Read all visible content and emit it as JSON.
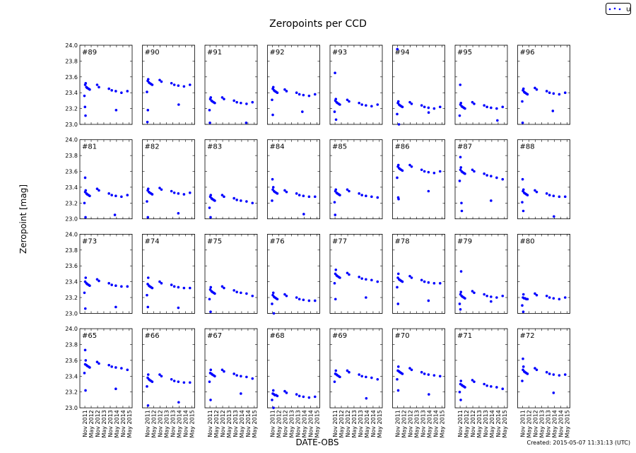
{
  "chart_data": {
    "type": "scatter",
    "title": "Zeropoints per CCD",
    "xlabel": "DATE-OBS",
    "ylabel": "Zeropoint [mag]",
    "ylim": [
      23.0,
      24.0
    ],
    "xlim": [
      "2011-06-10",
      "2015-07-25"
    ],
    "y_ticks": [
      23.0,
      23.2,
      23.4,
      23.6,
      23.8,
      24.0
    ],
    "y_tick_labels": [
      "23.0",
      "23.2",
      "23.4",
      "23.6",
      "23.8",
      "24.0"
    ],
    "x_ticks": [
      "2011-11-01",
      "2012-05-01",
      "2012-11-01",
      "2013-05-01",
      "2013-11-01",
      "2014-05-01",
      "2014-11-01",
      "2015-05-01"
    ],
    "x_tick_labels": [
      "Nov 2011",
      "May 2012",
      "Nov 2012",
      "May 2013",
      "Nov 2013",
      "May 2014",
      "Nov 2014",
      "May 2015"
    ],
    "legend": {
      "entries": [
        "u"
      ],
      "placement": "top-right"
    },
    "series_color": "#0000ff",
    "grid": false,
    "x": [
      "2011-10-20",
      "2011-11-10",
      "2011-11-25",
      "2011-12-15",
      "2012-01-10",
      "2012-02-15",
      "2012-03-20",
      "2012-10-20",
      "2012-12-10",
      "2013-09-25",
      "2013-12-15",
      "2014-04-10",
      "2014-09-20",
      "2015-03-10"
    ],
    "panels": [
      {
        "label": "#89",
        "y": [
          23.36,
          23.5,
          23.52,
          23.47,
          23.46,
          23.45,
          23.44,
          23.5,
          23.47,
          23.45,
          23.43,
          23.42,
          23.4,
          23.42
        ],
        "outliers": [
          [
            "2011-11-20",
            23.11
          ],
          [
            "2011-11-05",
            23.22
          ],
          [
            "2014-04-20",
            23.18
          ]
        ]
      },
      {
        "label": "#90",
        "y": [
          23.41,
          23.55,
          23.57,
          23.53,
          23.52,
          23.51,
          23.5,
          23.56,
          23.54,
          23.52,
          23.5,
          23.49,
          23.48,
          23.5
        ],
        "outliers": [
          [
            "2011-11-15",
            23.18
          ],
          [
            "2011-11-01",
            23.03
          ],
          [
            "2014-04-20",
            23.25
          ]
        ]
      },
      {
        "label": "#91",
        "y": [
          23.18,
          23.32,
          23.34,
          23.3,
          23.29,
          23.28,
          23.27,
          23.34,
          23.32,
          23.3,
          23.28,
          23.27,
          23.26,
          23.28
        ],
        "outliers": [
          [
            "2011-11-01",
            23.02
          ],
          [
            "2014-09-10",
            23.02
          ]
        ]
      },
      {
        "label": "#92",
        "y": [
          23.31,
          23.45,
          23.47,
          23.43,
          23.42,
          23.41,
          23.4,
          23.44,
          23.42,
          23.4,
          23.38,
          23.37,
          23.36,
          23.38
        ],
        "outliers": [
          [
            "2011-11-10",
            23.12
          ],
          [
            "2014-03-10",
            23.16
          ]
        ]
      },
      {
        "label": "#93",
        "y": [
          23.16,
          23.3,
          23.32,
          23.28,
          23.27,
          23.26,
          23.25,
          23.31,
          23.29,
          23.27,
          23.25,
          23.24,
          23.23,
          23.25
        ],
        "outliers": [
          [
            "2011-11-01",
            23.65
          ],
          [
            "2011-12-01",
            23.06
          ]
        ]
      },
      {
        "label": "#94",
        "y": [
          23.13,
          23.27,
          23.29,
          23.25,
          23.24,
          23.23,
          23.22,
          23.28,
          23.26,
          23.24,
          23.22,
          23.21,
          23.2,
          23.22
        ],
        "outliers": [
          [
            "2011-10-25",
            23.95
          ],
          [
            "2011-12-10",
            23.0
          ],
          [
            "2014-04-15",
            23.15
          ]
        ]
      },
      {
        "label": "#95",
        "y": [
          23.11,
          23.25,
          23.27,
          23.23,
          23.22,
          23.21,
          23.2,
          23.28,
          23.26,
          23.24,
          23.22,
          23.21,
          23.2,
          23.22
        ],
        "outliers": [
          [
            "2011-11-05",
            23.5
          ],
          [
            "2014-10-10",
            23.05
          ]
        ]
      },
      {
        "label": "#96",
        "y": [
          23.29,
          23.43,
          23.45,
          23.41,
          23.4,
          23.39,
          23.38,
          23.46,
          23.44,
          23.42,
          23.4,
          23.39,
          23.38,
          23.4
        ],
        "outliers": [
          [
            "2011-11-01",
            23.02
          ],
          [
            "2014-03-20",
            23.17
          ]
        ]
      },
      {
        "label": "#81",
        "y": [
          23.2,
          23.34,
          23.36,
          23.32,
          23.31,
          23.3,
          23.29,
          23.38,
          23.36,
          23.32,
          23.3,
          23.29,
          23.28,
          23.3
        ],
        "outliers": [
          [
            "2011-11-10",
            23.52
          ],
          [
            "2011-11-20",
            23.02
          ],
          [
            "2014-03-15",
            23.05
          ]
        ]
      },
      {
        "label": "#82",
        "y": [
          23.22,
          23.36,
          23.38,
          23.34,
          23.33,
          23.32,
          23.31,
          23.39,
          23.37,
          23.35,
          23.33,
          23.32,
          23.31,
          23.33
        ],
        "outliers": [
          [
            "2011-11-15",
            23.02
          ],
          [
            "2014-04-10",
            23.07
          ]
        ]
      },
      {
        "label": "#83",
        "y": [
          23.14,
          23.28,
          23.3,
          23.26,
          23.25,
          23.24,
          23.23,
          23.3,
          23.28,
          23.26,
          23.24,
          23.23,
          23.22,
          23.2
        ],
        "outliers": [
          [
            "2011-11-20",
            23.02
          ]
        ]
      },
      {
        "label": "#84",
        "y": [
          23.23,
          23.37,
          23.4,
          23.35,
          23.34,
          23.33,
          23.32,
          23.36,
          23.34,
          23.32,
          23.3,
          23.29,
          23.28,
          23.28
        ],
        "outliers": [
          [
            "2011-11-01",
            23.5
          ],
          [
            "2014-04-20",
            23.06
          ]
        ]
      },
      {
        "label": "#85",
        "y": [
          23.21,
          23.35,
          23.37,
          23.33,
          23.32,
          23.31,
          23.3,
          23.37,
          23.35,
          23.32,
          23.3,
          23.29,
          23.28,
          23.27
        ],
        "outliers": [
          [
            "2011-11-05",
            23.05
          ]
        ]
      },
      {
        "label": "#86",
        "y": [
          23.52,
          23.66,
          23.68,
          23.64,
          23.63,
          23.62,
          23.61,
          23.68,
          23.66,
          23.62,
          23.6,
          23.59,
          23.58,
          23.6
        ],
        "outliers": [
          [
            "2011-11-20",
            23.27
          ],
          [
            "2011-12-01",
            23.25
          ],
          [
            "2014-04-10",
            23.35
          ]
        ]
      },
      {
        "label": "#87",
        "y": [
          23.48,
          23.62,
          23.65,
          23.6,
          23.59,
          23.58,
          23.57,
          23.62,
          23.6,
          23.57,
          23.55,
          23.54,
          23.52,
          23.5
        ],
        "outliers": [
          [
            "2011-11-10",
            23.78
          ],
          [
            "2011-12-10",
            23.2
          ],
          [
            "2011-12-20",
            23.1
          ],
          [
            "2014-04-10",
            23.23
          ]
        ]
      },
      {
        "label": "#88",
        "y": [
          23.21,
          23.35,
          23.37,
          23.33,
          23.32,
          23.31,
          23.3,
          23.36,
          23.34,
          23.32,
          23.3,
          23.29,
          23.28,
          23.28
        ],
        "outliers": [
          [
            "2011-11-01",
            23.5
          ],
          [
            "2011-11-20",
            23.1
          ],
          [
            "2014-04-20",
            23.03
          ]
        ]
      },
      {
        "label": "#73",
        "y": [
          23.26,
          23.4,
          23.45,
          23.38,
          23.37,
          23.36,
          23.35,
          23.43,
          23.41,
          23.38,
          23.36,
          23.35,
          23.34,
          23.34
        ],
        "outliers": [
          [
            "2011-11-15",
            23.06
          ],
          [
            "2014-04-10",
            23.08
          ]
        ]
      },
      {
        "label": "#74",
        "y": [
          23.23,
          23.37,
          23.45,
          23.35,
          23.34,
          23.33,
          23.32,
          23.4,
          23.38,
          23.36,
          23.34,
          23.33,
          23.32,
          23.32
        ],
        "outliers": [
          [
            "2011-11-15",
            23.08
          ],
          [
            "2014-04-10",
            23.07
          ]
        ]
      },
      {
        "label": "#75",
        "y": [
          23.18,
          23.3,
          23.33,
          23.28,
          23.27,
          23.26,
          23.25,
          23.34,
          23.32,
          23.29,
          23.27,
          23.26,
          23.25,
          23.22
        ],
        "outliers": [
          [
            "2011-11-20",
            23.02
          ]
        ]
      },
      {
        "label": "#76",
        "y": [
          23.12,
          23.23,
          23.26,
          23.21,
          23.2,
          23.19,
          23.18,
          23.24,
          23.22,
          23.2,
          23.18,
          23.17,
          23.16,
          23.16
        ],
        "outliers": [
          [
            "2011-12-10",
            23.0
          ]
        ]
      },
      {
        "label": "#77",
        "y": [
          23.38,
          23.5,
          23.55,
          23.48,
          23.47,
          23.46,
          23.45,
          23.51,
          23.49,
          23.46,
          23.44,
          23.43,
          23.42,
          23.4
        ],
        "outliers": [
          [
            "2011-11-15",
            23.18
          ],
          [
            "2014-04-10",
            23.2
          ]
        ]
      },
      {
        "label": "#78",
        "y": [
          23.33,
          23.45,
          23.5,
          23.43,
          23.42,
          23.41,
          23.4,
          23.47,
          23.45,
          23.42,
          23.4,
          23.39,
          23.38,
          23.38
        ],
        "outliers": [
          [
            "2011-11-15",
            23.12
          ],
          [
            "2014-04-10",
            23.16
          ]
        ]
      },
      {
        "label": "#79",
        "y": [
          23.12,
          23.24,
          23.27,
          23.22,
          23.21,
          23.2,
          23.19,
          23.28,
          23.26,
          23.24,
          23.22,
          23.21,
          23.2,
          23.22
        ],
        "outliers": [
          [
            "2011-12-01",
            23.53
          ],
          [
            "2011-11-10",
            23.05
          ],
          [
            "2014-04-10",
            23.15
          ]
        ]
      },
      {
        "label": "#80",
        "y": [
          23.1,
          23.2,
          23.24,
          23.19,
          23.19,
          23.18,
          23.18,
          23.25,
          23.23,
          23.22,
          23.2,
          23.19,
          23.18,
          23.2
        ],
        "outliers": [
          [
            "2011-11-20",
            23.02
          ]
        ]
      },
      {
        "label": "#65",
        "y": [
          23.44,
          23.55,
          23.6,
          23.54,
          23.53,
          23.52,
          23.51,
          23.58,
          23.56,
          23.54,
          23.52,
          23.51,
          23.5,
          23.48
        ],
        "outliers": [
          [
            "2011-11-20",
            23.22
          ],
          [
            "2011-11-10",
            23.73
          ],
          [
            "2014-04-10",
            23.24
          ]
        ]
      },
      {
        "label": "#66",
        "y": [
          23.27,
          23.38,
          23.42,
          23.36,
          23.35,
          23.34,
          23.33,
          23.42,
          23.4,
          23.36,
          23.34,
          23.33,
          23.32,
          23.32
        ],
        "outliers": [
          [
            "2011-11-20",
            23.03
          ],
          [
            "2014-04-20",
            23.07
          ]
        ]
      },
      {
        "label": "#67",
        "y": [
          23.33,
          23.44,
          23.48,
          23.43,
          23.42,
          23.41,
          23.4,
          23.48,
          23.46,
          23.43,
          23.41,
          23.4,
          23.39,
          23.37
        ],
        "outliers": [
          [
            "2011-11-20",
            23.1
          ],
          [
            "2014-04-10",
            23.18
          ]
        ]
      },
      {
        "label": "#68",
        "y": [
          23.1,
          23.18,
          23.22,
          23.17,
          23.16,
          23.16,
          23.15,
          23.21,
          23.19,
          23.17,
          23.15,
          23.14,
          23.13,
          23.14
        ],
        "outliers": [
          [
            "2011-12-01",
            23.0
          ]
        ]
      },
      {
        "label": "#69",
        "y": [
          23.33,
          23.43,
          23.47,
          23.42,
          23.41,
          23.4,
          23.39,
          23.47,
          23.45,
          23.42,
          23.4,
          23.39,
          23.38,
          23.36
        ],
        "outliers": [
          [
            "2014-04-20",
            23.12
          ]
        ]
      },
      {
        "label": "#70",
        "y": [
          23.36,
          23.47,
          23.52,
          23.46,
          23.45,
          23.44,
          23.43,
          23.5,
          23.48,
          23.45,
          23.43,
          23.42,
          23.41,
          23.4
        ],
        "outliers": [
          [
            "2011-11-20",
            23.22
          ],
          [
            "2014-04-20",
            23.17
          ]
        ]
      },
      {
        "label": "#71",
        "y": [
          23.2,
          23.3,
          23.34,
          23.29,
          23.28,
          23.27,
          23.26,
          23.35,
          23.33,
          23.3,
          23.28,
          23.27,
          23.26,
          23.24
        ],
        "outliers": [
          [
            "2011-11-20",
            23.1
          ]
        ]
      },
      {
        "label": "#72",
        "y": [
          23.34,
          23.48,
          23.52,
          23.46,
          23.45,
          23.44,
          23.43,
          23.5,
          23.48,
          23.45,
          23.43,
          23.42,
          23.41,
          23.42
        ],
        "outliers": [
          [
            "2011-11-10",
            23.62
          ],
          [
            "2014-04-10",
            23.19
          ]
        ]
      }
    ]
  },
  "footer": {
    "created": "Created: 2015-05-07 11:31:13 (UTC)"
  }
}
